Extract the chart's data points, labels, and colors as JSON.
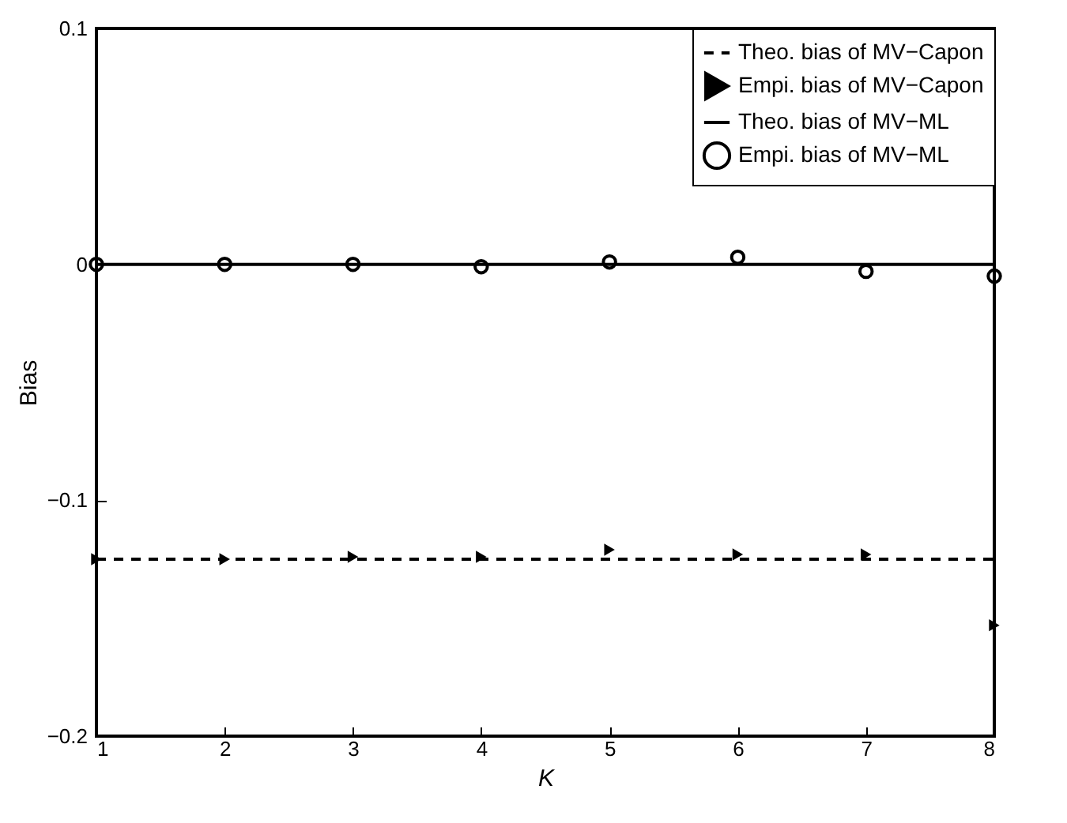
{
  "chart_data": {
    "type": "line",
    "xlabel": "K",
    "ylabel": "Bias",
    "x": [
      1,
      2,
      3,
      4,
      5,
      6,
      7,
      8
    ],
    "xlim": [
      1,
      8
    ],
    "xticks": [
      1,
      2,
      3,
      4,
      5,
      6,
      7,
      8
    ],
    "ylim": [
      -0.2,
      0.1
    ],
    "yticks": [
      {
        "value": -0.2,
        "label": "−0.2"
      },
      {
        "value": -0.1,
        "label": "−0.1"
      },
      0,
      0.1
    ],
    "grid": false,
    "legend": "top right",
    "series": [
      {
        "name": "Theo. bias of MV−Capon",
        "color": "#000000",
        "line_style": "dashed",
        "marker": "none",
        "values": [
          -0.125,
          -0.125,
          -0.125,
          -0.125,
          -0.125,
          -0.125,
          -0.125,
          -0.125
        ]
      },
      {
        "name": "Empi. bias of MV−Capon",
        "type": "scatter",
        "color": "#000000",
        "marker": "triangle",
        "values": [
          -0.125,
          -0.125,
          -0.124,
          -0.124,
          -0.121,
          -0.123,
          -0.123,
          -0.153
        ]
      },
      {
        "name": "Theo. bias of MV−ML",
        "color": "#000000",
        "line_style": "solid",
        "marker": "none",
        "values": [
          0,
          0,
          0,
          0,
          0,
          0,
          0,
          0
        ]
      },
      {
        "name": "Empi. bias of MV−ML",
        "type": "scatter",
        "color": "#000000",
        "marker": "circle",
        "values": [
          0,
          0,
          0,
          -0.001,
          0.001,
          0.003,
          -0.003,
          -0.005
        ]
      }
    ]
  }
}
